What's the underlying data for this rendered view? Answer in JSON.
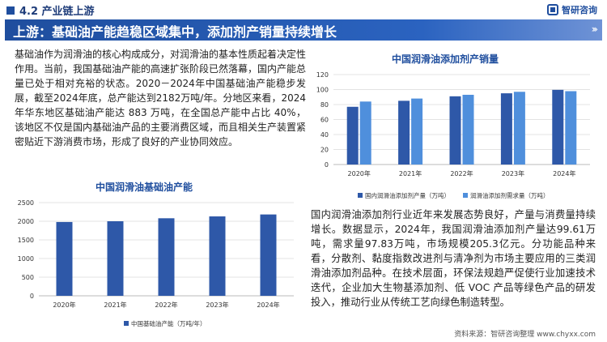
{
  "header": {
    "section": "4.2 产业链上游",
    "brand": "智研咨询"
  },
  "banner": {
    "title": "上游：基础油产能趋稳区域集中，添加剂产销量持续增长"
  },
  "left_text": "基础油作为润滑油的核心构成成分，对润滑油的基本性质起着决定性作用。当前，我国基础油产能的高速扩张阶段已然落幕，国内产能总量已处于相对充裕的状态。2020－2024年中国基础油产能稳步发展，截至2024年底，总产能达到2182万吨/年。分地区来看，2024 年华东地区基础油产能达 883 万吨，在全国总产能中占比 40%，该地区不仅是国内基础油产品的主要消费区域，而且相关生产装置紧密贴近下游消费市场，形成了良好的产业协同效应。",
  "right_text": "国内润滑油添加剂行业近年来发展态势良好，产量与消费量持续增长。数据显示，2024年，我国润滑油添加剂产量达99.61万吨，需求量97.83万吨，市场规模205.3亿元。分功能品种来看，分散剂、黏度指数改进剂与清净剂为市场主要应用的三类润滑油添加剂品种。在技术层面，环保法规趋严促使行业加速技术迭代，企业加大生物基添加剂、低 VOC 产品等绿色产品的研发投入，推动行业从传统工艺向绿色制造转型。",
  "source": "资料来源：智研咨询整理   www.chyxx.com",
  "colors": {
    "primary": "#1f4e9e",
    "bar_dark": "#2e58a8",
    "bar_light": "#4f8fdc"
  },
  "chart_data": [
    {
      "type": "bar",
      "title": "中国润滑油添加剂产销量",
      "categories": [
        "2020年",
        "2021年",
        "2022年",
        "2023年",
        "2024年"
      ],
      "ylim": [
        0,
        120
      ],
      "yticks": [
        0,
        20,
        40,
        60,
        80,
        100,
        120
      ],
      "grid": true,
      "legend_position": "bottom",
      "series": [
        {
          "name": "国内润滑油添加剂产量（万吨）",
          "values": [
            77,
            85,
            91,
            95,
            99.61
          ]
        },
        {
          "name": "润滑油添加剂需求量（万吨）",
          "values": [
            84,
            88,
            93,
            97,
            97.83
          ]
        }
      ]
    },
    {
      "type": "bar",
      "title": "中国润滑油基础油产能",
      "categories": [
        "2020年",
        "2021年",
        "2022年",
        "2023年",
        "2024年"
      ],
      "ylim": [
        0,
        2500
      ],
      "yticks": [
        0,
        500,
        1000,
        1500,
        2000,
        2500
      ],
      "grid": true,
      "legend_position": "bottom",
      "series": [
        {
          "name": "中国基础油产能（万吨/年）",
          "values": [
            1980,
            2000,
            2080,
            2130,
            2182
          ]
        }
      ]
    }
  ]
}
